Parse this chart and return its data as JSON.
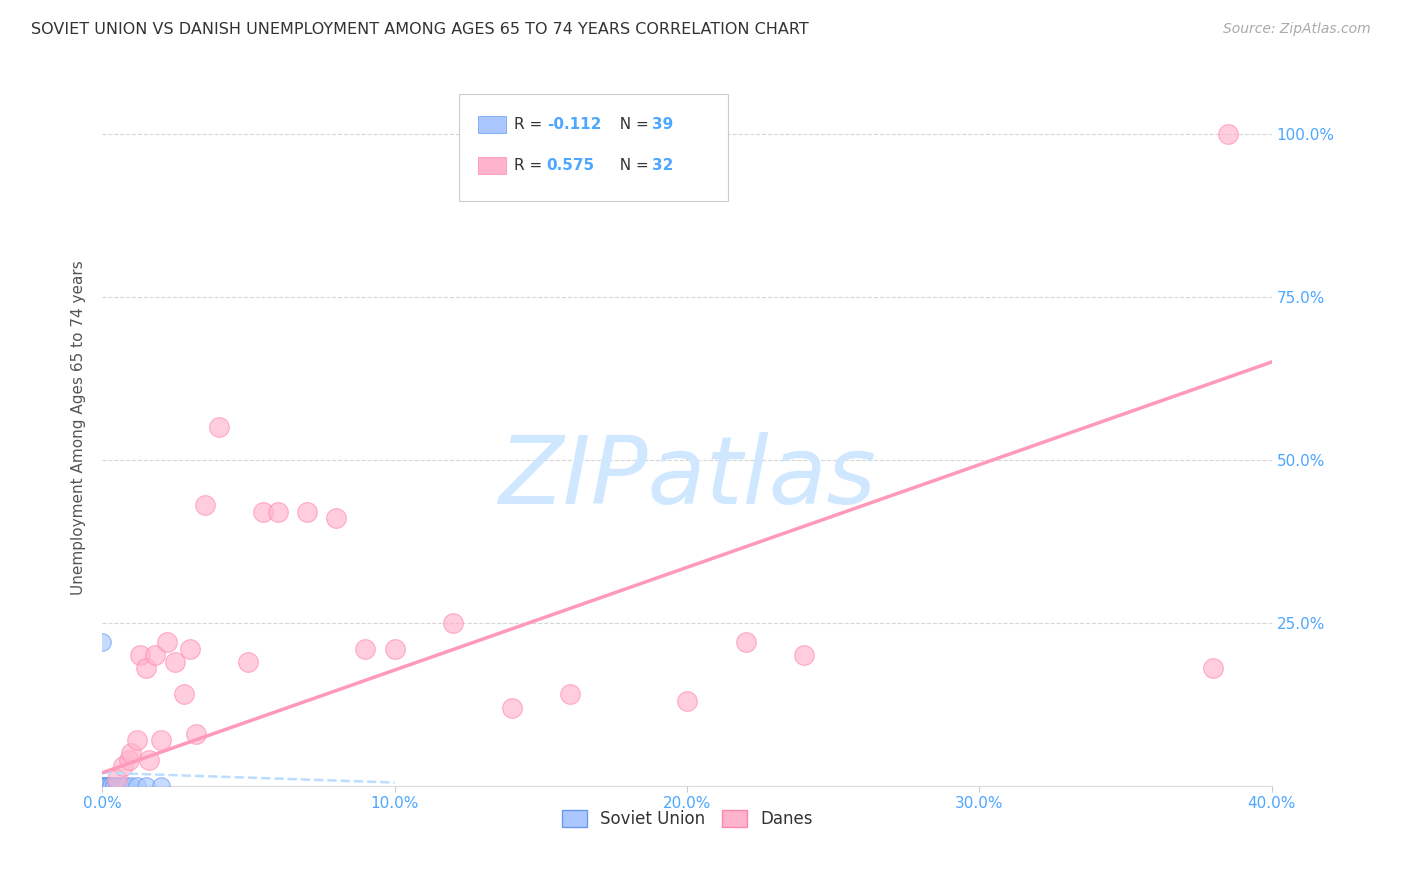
{
  "title": "SOVIET UNION VS DANISH UNEMPLOYMENT AMONG AGES 65 TO 74 YEARS CORRELATION CHART",
  "source": "Source: ZipAtlas.com",
  "ylabel": "Unemployment Among Ages 65 to 74 years",
  "background_color": "#ffffff",
  "grid_color": "#cccccc",
  "title_fontsize": 11.5,
  "source_fontsize": 10,
  "soviet_R": -0.112,
  "soviet_N": 39,
  "danes_R": 0.575,
  "danes_N": 32,
  "soviet_color": "#aac8ff",
  "soviet_edge_color": "#6699ee",
  "danes_color": "#ffb3cc",
  "danes_edge_color": "#ff88aa",
  "soviet_trend_color": "#bbddff",
  "danes_trend_color": "#ff99bb",
  "x_min": 0.0,
  "x_max": 0.4,
  "y_min": 0.0,
  "y_max": 1.1,
  "x_ticks": [
    0.0,
    0.1,
    0.2,
    0.3,
    0.4
  ],
  "x_tick_labels": [
    "0.0%",
    "10.0%",
    "20.0%",
    "30.0%",
    "40.0%"
  ],
  "y_ticks": [
    0.0,
    0.25,
    0.5,
    0.75,
    1.0
  ],
  "y_tick_labels": [
    "",
    "25.0%",
    "50.0%",
    "75.0%",
    "100.0%"
  ],
  "soviet_x": [
    0.0,
    0.0,
    0.0,
    0.0,
    0.0,
    0.0,
    0.0,
    0.0,
    0.0,
    0.0,
    0.0,
    0.0,
    0.0,
    0.0,
    0.0,
    0.0,
    0.0,
    0.0,
    0.0,
    0.0,
    0.001,
    0.001,
    0.001,
    0.001,
    0.002,
    0.002,
    0.002,
    0.003,
    0.003,
    0.004,
    0.004,
    0.005,
    0.006,
    0.007,
    0.008,
    0.01,
    0.012,
    0.015,
    0.02
  ],
  "soviet_y": [
    0.0,
    0.0,
    0.0,
    0.0,
    0.0,
    0.0,
    0.0,
    0.0,
    0.0,
    0.0,
    0.0,
    0.0,
    0.0,
    0.0,
    0.0,
    0.0,
    0.0,
    0.0,
    0.0,
    0.22,
    0.0,
    0.0,
    0.0,
    0.0,
    0.0,
    0.0,
    0.0,
    0.0,
    0.0,
    0.0,
    0.0,
    0.0,
    0.0,
    0.0,
    0.0,
    0.0,
    0.0,
    0.0,
    0.0
  ],
  "danes_x": [
    0.005,
    0.007,
    0.009,
    0.01,
    0.012,
    0.013,
    0.015,
    0.016,
    0.018,
    0.02,
    0.022,
    0.025,
    0.028,
    0.03,
    0.032,
    0.035,
    0.04,
    0.05,
    0.055,
    0.06,
    0.07,
    0.08,
    0.09,
    0.1,
    0.12,
    0.14,
    0.16,
    0.2,
    0.22,
    0.24,
    0.38,
    0.385
  ],
  "danes_y": [
    0.01,
    0.03,
    0.04,
    0.05,
    0.07,
    0.2,
    0.18,
    0.04,
    0.2,
    0.07,
    0.22,
    0.19,
    0.14,
    0.21,
    0.08,
    0.43,
    0.55,
    0.19,
    0.42,
    0.42,
    0.42,
    0.41,
    0.21,
    0.21,
    0.25,
    0.12,
    0.14,
    0.13,
    0.22,
    0.2,
    0.18,
    1.0
  ],
  "danes_trend_x0": 0.0,
  "danes_trend_y0": 0.02,
  "danes_trend_x1": 0.4,
  "danes_trend_y1": 0.65,
  "soviet_trend_x0": 0.0,
  "soviet_trend_x1": 0.1,
  "soviet_trend_y0": 0.02,
  "soviet_trend_y1": 0.005,
  "watermark": "ZIPatlas",
  "watermark_color": "#d0e8ff",
  "legend_soviet_label": "Soviet Union",
  "legend_danes_label": "Danes",
  "tick_color": "#4da6ff",
  "label_color": "#555555"
}
